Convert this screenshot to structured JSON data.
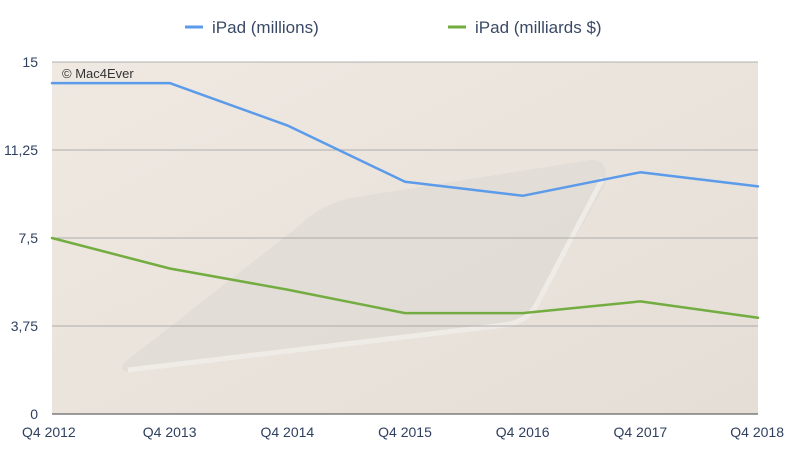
{
  "watermark": "© Mac4Ever",
  "colors": {
    "series_1": "#5b9bea",
    "series_2": "#73ad41",
    "grid": "#9a9a9a",
    "plot_bg": "#ebe6df"
  },
  "chart_data": {
    "type": "line",
    "title": "",
    "xlabel": "",
    "ylabel": "",
    "categories": [
      "Q4 2012",
      "Q4 2013",
      "Q4 2014",
      "Q4 2015",
      "Q4 2016",
      "Q4 2017",
      "Q4 2018"
    ],
    "ylim": [
      0,
      15
    ],
    "yticks": [
      0,
      3.75,
      7.5,
      11.25,
      15
    ],
    "ytick_labels": [
      "0",
      "3,75",
      "7,5",
      "11,25",
      "15"
    ],
    "grid": true,
    "legend_position": "top-center",
    "series": [
      {
        "name": "iPad (millions)",
        "values": [
          14.1,
          14.1,
          12.3,
          9.9,
          9.3,
          10.3,
          9.7
        ]
      },
      {
        "name": "iPad (milliards $)",
        "values": [
          7.5,
          6.2,
          5.3,
          4.3,
          4.3,
          4.8,
          4.1
        ]
      }
    ]
  }
}
